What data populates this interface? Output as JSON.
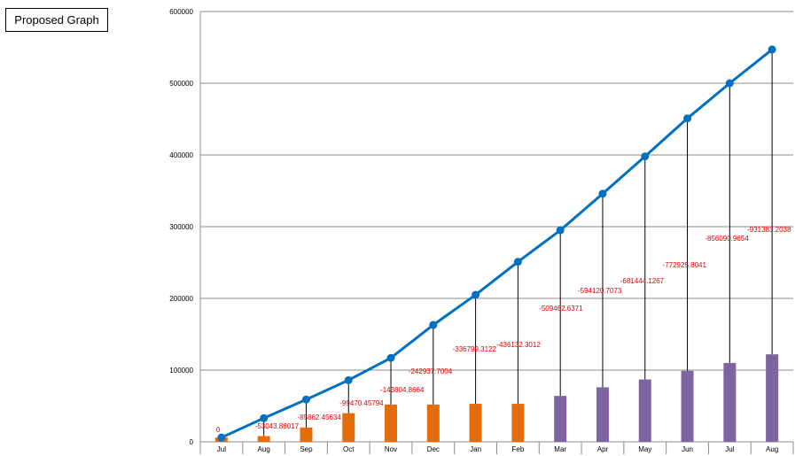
{
  "title_box": {
    "label": "Proposed Graph"
  },
  "chart_data": {
    "type": "bar",
    "title": "",
    "xlabel": "",
    "ylabel": "",
    "ylim": [
      0,
      600000
    ],
    "yticks": [
      0,
      100000,
      200000,
      300000,
      400000,
      500000,
      600000
    ],
    "grid": true,
    "categories": [
      "Jul",
      "Aug",
      "Sep",
      "Oct",
      "Nov",
      "Dec",
      "Jan",
      "Feb",
      "Mar",
      "Apr",
      "May",
      "Jun",
      "Jul",
      "Aug"
    ],
    "bars": {
      "values": [
        6000,
        8000,
        20000,
        40000,
        52000,
        52000,
        53000,
        53000,
        64000,
        76000,
        87000,
        99000,
        110000,
        122000
      ],
      "colors": [
        "#e46c0a",
        "#e46c0a",
        "#e46c0a",
        "#e46c0a",
        "#e46c0a",
        "#e46c0a",
        "#e46c0a",
        "#e46c0a",
        "#8064a2",
        "#8064a2",
        "#8064a2",
        "#8064a2",
        "#8064a2",
        "#8064a2"
      ]
    },
    "line": {
      "values": [
        6000,
        33000,
        59000,
        86000,
        117000,
        163000,
        205000,
        251000,
        295000,
        346000,
        398000,
        451000,
        500000,
        547000
      ],
      "color": "#0070c0"
    },
    "difference_labels": [
      "0",
      "-53043.88017",
      "-85862.45634",
      "-99470.45794",
      "-143804.8664",
      "-242937.7004",
      "-336799.3122",
      "-436132.3012",
      "-509462.6371",
      "-594120.7073",
      "-681444.1267",
      "-772925.8041",
      "-856090.9654",
      "-931383.2038"
    ],
    "label_color": "#e00000"
  }
}
